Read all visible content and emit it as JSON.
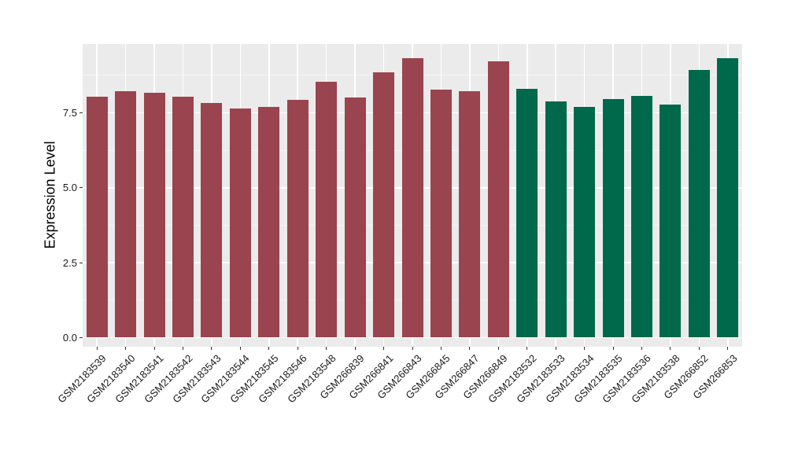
{
  "chart_data": {
    "type": "bar",
    "ylabel": "Expression Level",
    "categories": [
      "GSM2183539",
      "GSM2183540",
      "GSM2183541",
      "GSM2183542",
      "GSM2183543",
      "GSM2183544",
      "GSM2183545",
      "GSM2183546",
      "GSM2183548",
      "GSM266839",
      "GSM266841",
      "GSM266843",
      "GSM266845",
      "GSM266847",
      "GSM266849",
      "GSM2183532",
      "GSM2183533",
      "GSM2183534",
      "GSM2183535",
      "GSM2183536",
      "GSM2183538",
      "GSM266852",
      "GSM266853"
    ],
    "values": [
      8.05,
      8.22,
      8.18,
      8.05,
      7.82,
      7.64,
      7.71,
      7.94,
      8.53,
      8.01,
      8.86,
      9.33,
      8.27,
      8.22,
      9.21,
      8.29,
      7.88,
      7.69,
      7.96,
      8.07,
      7.79,
      8.92,
      9.33
    ],
    "color_groups": [
      {
        "color": "#9A4450",
        "from": 0,
        "to": 14
      },
      {
        "color": "#00684B",
        "from": 15,
        "to": 22
      }
    ],
    "y_tick_values": [
      0.0,
      2.5,
      5.0,
      7.5
    ],
    "y_tick_labels": [
      "0.0",
      "2.5",
      "5.0",
      "7.5"
    ],
    "y_minor_values": [
      1.25,
      3.75,
      6.25,
      8.75
    ],
    "ylim": [
      -0.3,
      9.8
    ],
    "grid": true,
    "legend_position": "none",
    "panel_background": "#EBEBEB",
    "gridline_color": "#FFFFFF",
    "x_label_angle": 45
  }
}
